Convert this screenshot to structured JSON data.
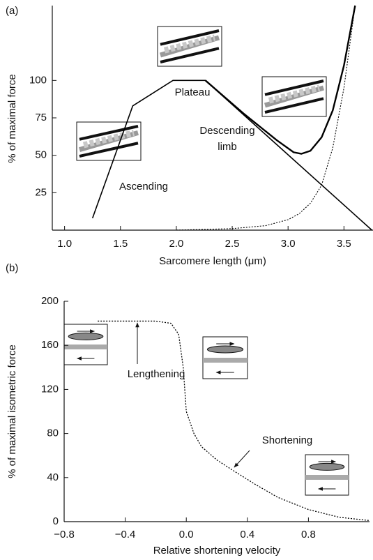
{
  "chart_data": [
    {
      "type": "line",
      "label": "(a)",
      "x_label": "Sarcomere length (μm)",
      "y_label": "% of maximal force",
      "xlim": [
        0.89,
        3.76
      ],
      "ylim": [
        0,
        150
      ],
      "xticks": [
        {
          "value": 1.0,
          "label": "1.0"
        },
        1.5,
        {
          "value": 2.0,
          "label": "2.0"
        },
        2.5,
        {
          "value": 3.0,
          "label": "3.0"
        },
        3.5
      ],
      "yticks": [
        25,
        50,
        75,
        100
      ],
      "series": [
        {
          "color": "#000000",
          "line_style": "solid",
          "x": [
            1.25,
            1.61,
            1.97,
            2.26,
            3.75
          ],
          "values": [
            8,
            83,
            100,
            100,
            0
          ]
        },
        {
          "color": "#000000",
          "line_style": "solid",
          "x": [
            2.26,
            2.6,
            2.9,
            3.05,
            3.12,
            3.2,
            3.3,
            3.4,
            3.5,
            3.6
          ],
          "values": [
            100,
            78,
            60,
            52,
            51,
            53,
            62,
            80,
            110,
            150
          ]
        },
        {
          "color": "#000000",
          "line_style": "dotted",
          "x": [
            2.0,
            2.5,
            2.8,
            3.0,
            3.1,
            3.2,
            3.3,
            3.4,
            3.5,
            3.6
          ],
          "values": [
            0,
            1,
            3,
            7,
            11,
            18,
            30,
            55,
            95,
            150
          ]
        }
      ],
      "annotations": [
        "Plateau",
        "Ascending",
        "Descending",
        "limb"
      ]
    },
    {
      "type": "line",
      "label": "(b)",
      "x_label": "Relative shortening velocity",
      "y_label": "% of maximal isometric force",
      "xlim": [
        -0.8,
        1.2
      ],
      "ylim": [
        0,
        200
      ],
      "xticks": [
        {
          "value": -0.8,
          "label": "−0.8"
        },
        {
          "value": -0.4,
          "label": "−0.4"
        },
        {
          "value": 0.0,
          "label": "0.0"
        },
        0.4,
        0.8
      ],
      "yticks": [
        0,
        40,
        80,
        120,
        160,
        200
      ],
      "series": [
        {
          "color": "#000000",
          "line_style": "dotted",
          "x": [
            -0.58,
            -0.2,
            -0.1,
            -0.05,
            -0.02,
            0,
            0.05,
            0.1,
            0.2,
            0.3,
            0.45,
            0.6,
            0.8,
            1.0,
            1.2
          ],
          "values": [
            182,
            182,
            180,
            170,
            140,
            100,
            80,
            68,
            56,
            47,
            34,
            22,
            11,
            4,
            1
          ]
        }
      ],
      "annotations": [
        "Lengthening",
        "Shortening"
      ]
    }
  ]
}
